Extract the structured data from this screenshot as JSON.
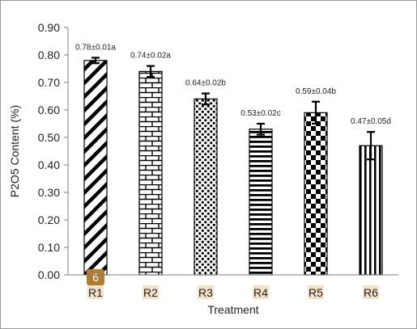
{
  "chart_data": {
    "type": "bar",
    "title": "",
    "xlabel": "Treatment",
    "ylabel": "P2O5 Content (%)",
    "ylim": [
      0,
      0.9
    ],
    "yticks": [
      "0.00",
      "0.10",
      "0.20",
      "0.30",
      "0.40",
      "0.50",
      "0.60",
      "0.70",
      "0.80",
      "0.90"
    ],
    "categories": [
      "R1",
      "R2",
      "R3",
      "R4",
      "R5",
      "R6"
    ],
    "values": [
      0.78,
      0.74,
      0.64,
      0.53,
      0.59,
      0.47
    ],
    "errors": [
      0.01,
      0.02,
      0.02,
      0.02,
      0.04,
      0.05
    ],
    "data_labels": [
      "0.78±0.01a",
      "0.74±0.02a",
      "0.64±0.02b",
      "0.53±0.02c",
      "0.59±0.04b",
      "0.47±0.05d"
    ],
    "patterns": [
      "diagonal-stripes",
      "brick",
      "dots",
      "horizontal-stripes",
      "checkerboard",
      "vertical-stripes"
    ],
    "grid": false,
    "legend": "none",
    "badge_text": "6",
    "colors": {
      "bar_stroke": "#000000",
      "badge_bg": "#b07d2e",
      "label_highlight": "#f3e2c7",
      "axis": "#808080"
    }
  }
}
